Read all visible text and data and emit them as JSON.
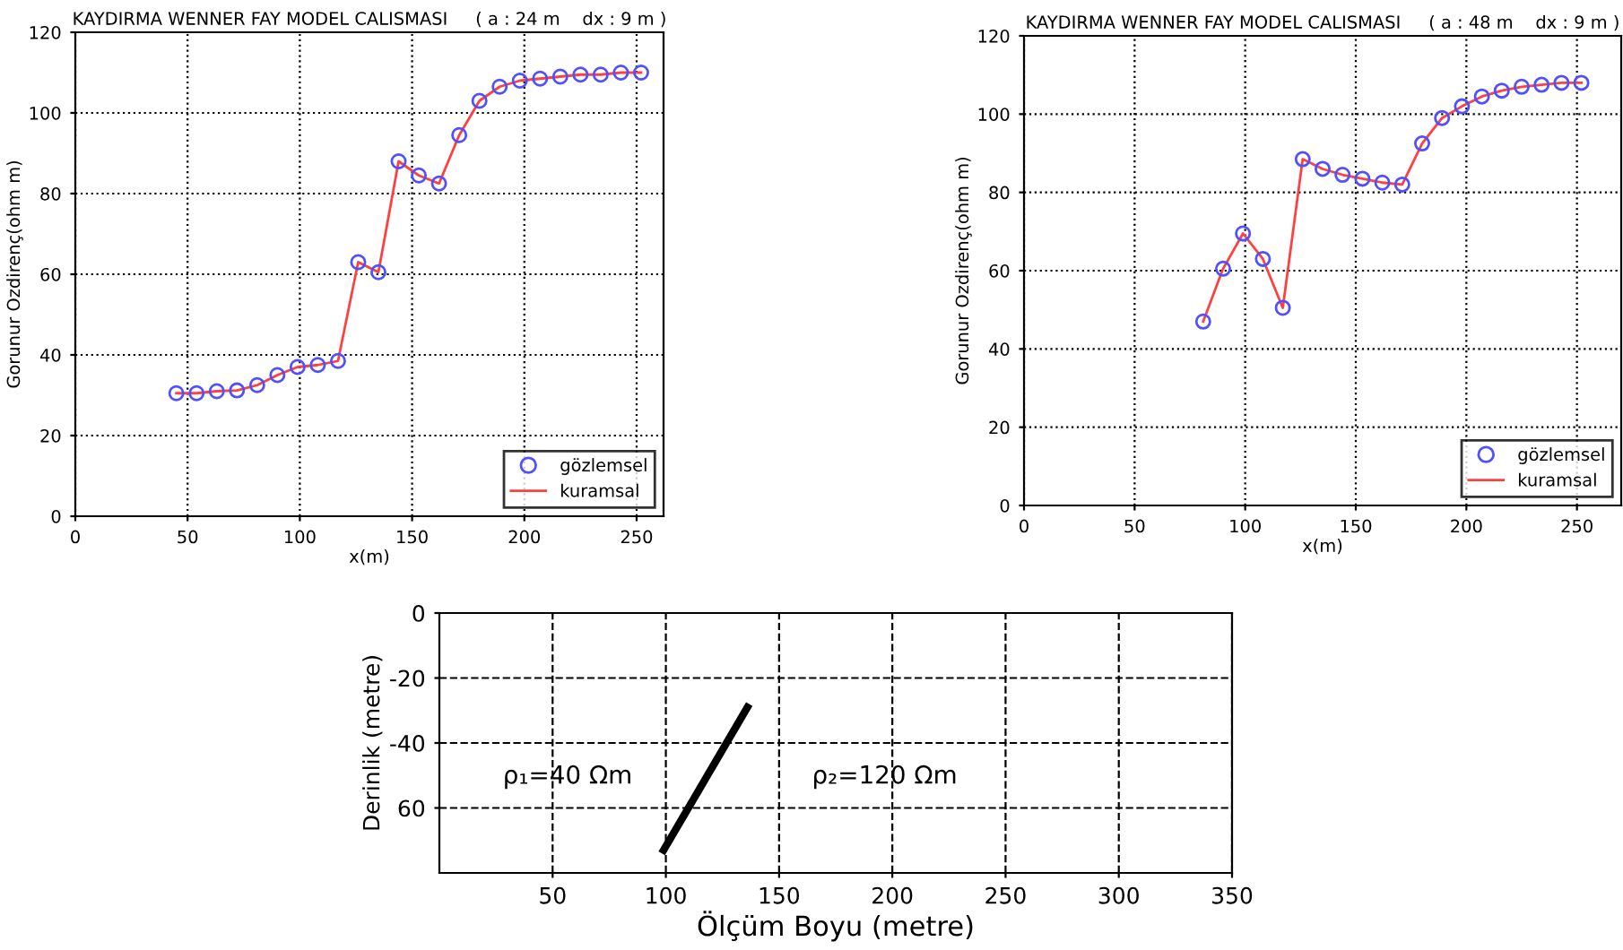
{
  "chart_data": [
    {
      "type": "line",
      "title": "KAYDIRMA WENNER FAY MODEL CALISMASI     ( a : 24 m    dx : 9 m )",
      "xlabel": "x(m)",
      "ylabel": "Gorunur Ozdirenç(ohm m)",
      "x": [
        45,
        54,
        63,
        72,
        81,
        90,
        99,
        108,
        117,
        126,
        135,
        144,
        153,
        162,
        171,
        180,
        189,
        198,
        207,
        216,
        225,
        234,
        243,
        252
      ],
      "series": [
        {
          "name": "gözlemsel",
          "type": "scatter",
          "marker": "circle",
          "color": "#5050ff",
          "values": [
            30.5,
            30.5,
            31,
            31.2,
            32.5,
            35,
            37,
            37.5,
            38.5,
            63,
            60.5,
            88,
            84.5,
            82.5,
            94.5,
            103,
            106.5,
            108,
            108.5,
            109,
            109.5,
            109.5,
            110,
            110
          ]
        },
        {
          "name": "kuramsal",
          "marker": "none",
          "color": "#ff4040",
          "values": [
            30.5,
            30.5,
            31,
            31.2,
            32.5,
            35,
            37,
            37.5,
            38.5,
            63,
            60.5,
            88,
            84.5,
            82.5,
            94.5,
            103,
            106.5,
            108,
            108.5,
            109,
            109.5,
            109.5,
            110,
            110
          ]
        }
      ],
      "xlim": [
        0,
        262
      ],
      "xticks": [
        0,
        50,
        100,
        150,
        200,
        250
      ],
      "ylim": [
        0,
        120
      ],
      "yticks": [
        0,
        20,
        40,
        60,
        80,
        100,
        120
      ],
      "grid": true,
      "legend": "bottom right"
    },
    {
      "type": "line",
      "title": "KAYDIRMA WENNER FAY MODEL CALISMASI     ( a : 48 m    dx : 9 m )",
      "xlabel": "x(m)",
      "ylabel": "Gorunur Ozdirenç(ohm m)",
      "x": [
        81,
        90,
        99,
        108,
        117,
        126,
        135,
        144,
        153,
        162,
        171,
        180,
        189,
        198,
        207,
        216,
        225,
        234,
        243,
        252
      ],
      "series": [
        {
          "name": "gözlemsel",
          "type": "scatter",
          "marker": "circle",
          "color": "#5050ff",
          "values": [
            47,
            60.5,
            69.5,
            63,
            50.5,
            88.5,
            86,
            84.5,
            83.5,
            82.5,
            82,
            92.5,
            99,
            102,
            104.5,
            106,
            107,
            107.5,
            108,
            108
          ]
        },
        {
          "name": "kuramsal",
          "marker": "none",
          "color": "#ff4040",
          "values": [
            47,
            60.5,
            69.5,
            63,
            50.5,
            88.5,
            86,
            84.5,
            83.5,
            82.5,
            82,
            92.5,
            99,
            102,
            104.5,
            106,
            107,
            107.5,
            108,
            108
          ]
        }
      ],
      "xlim": [
        0,
        270
      ],
      "xticks": [
        0,
        50,
        100,
        150,
        200,
        250
      ],
      "ylim": [
        0,
        120
      ],
      "yticks": [
        0,
        20,
        40,
        60,
        80,
        100,
        120
      ],
      "grid": true,
      "legend": "bottom right"
    },
    {
      "type": "line",
      "xlabel": "Ölçüm Boyu (metre)",
      "ylabel": "Derinlik (metre)",
      "series": [
        {
          "marker": "none",
          "color": "#000000",
          "x": [
            99,
            136
          ],
          "values": [
            -73,
            -29
          ]
        }
      ],
      "xlim": [
        0,
        350
      ],
      "xticks": [
        50,
        100,
        150,
        200,
        250,
        300,
        350
      ],
      "ylim": [
        -80,
        0
      ],
      "yticks": [
        {
          "value": 0,
          "label": "0"
        },
        {
          "value": -20,
          "label": "-20"
        },
        {
          "value": -40,
          "label": "-40"
        },
        {
          "value": -60,
          "label": "60"
        }
      ],
      "grid": true,
      "annotations": [
        "ρ₁=40 Ωm",
        "ρ₂=120 Ωm"
      ]
    }
  ]
}
